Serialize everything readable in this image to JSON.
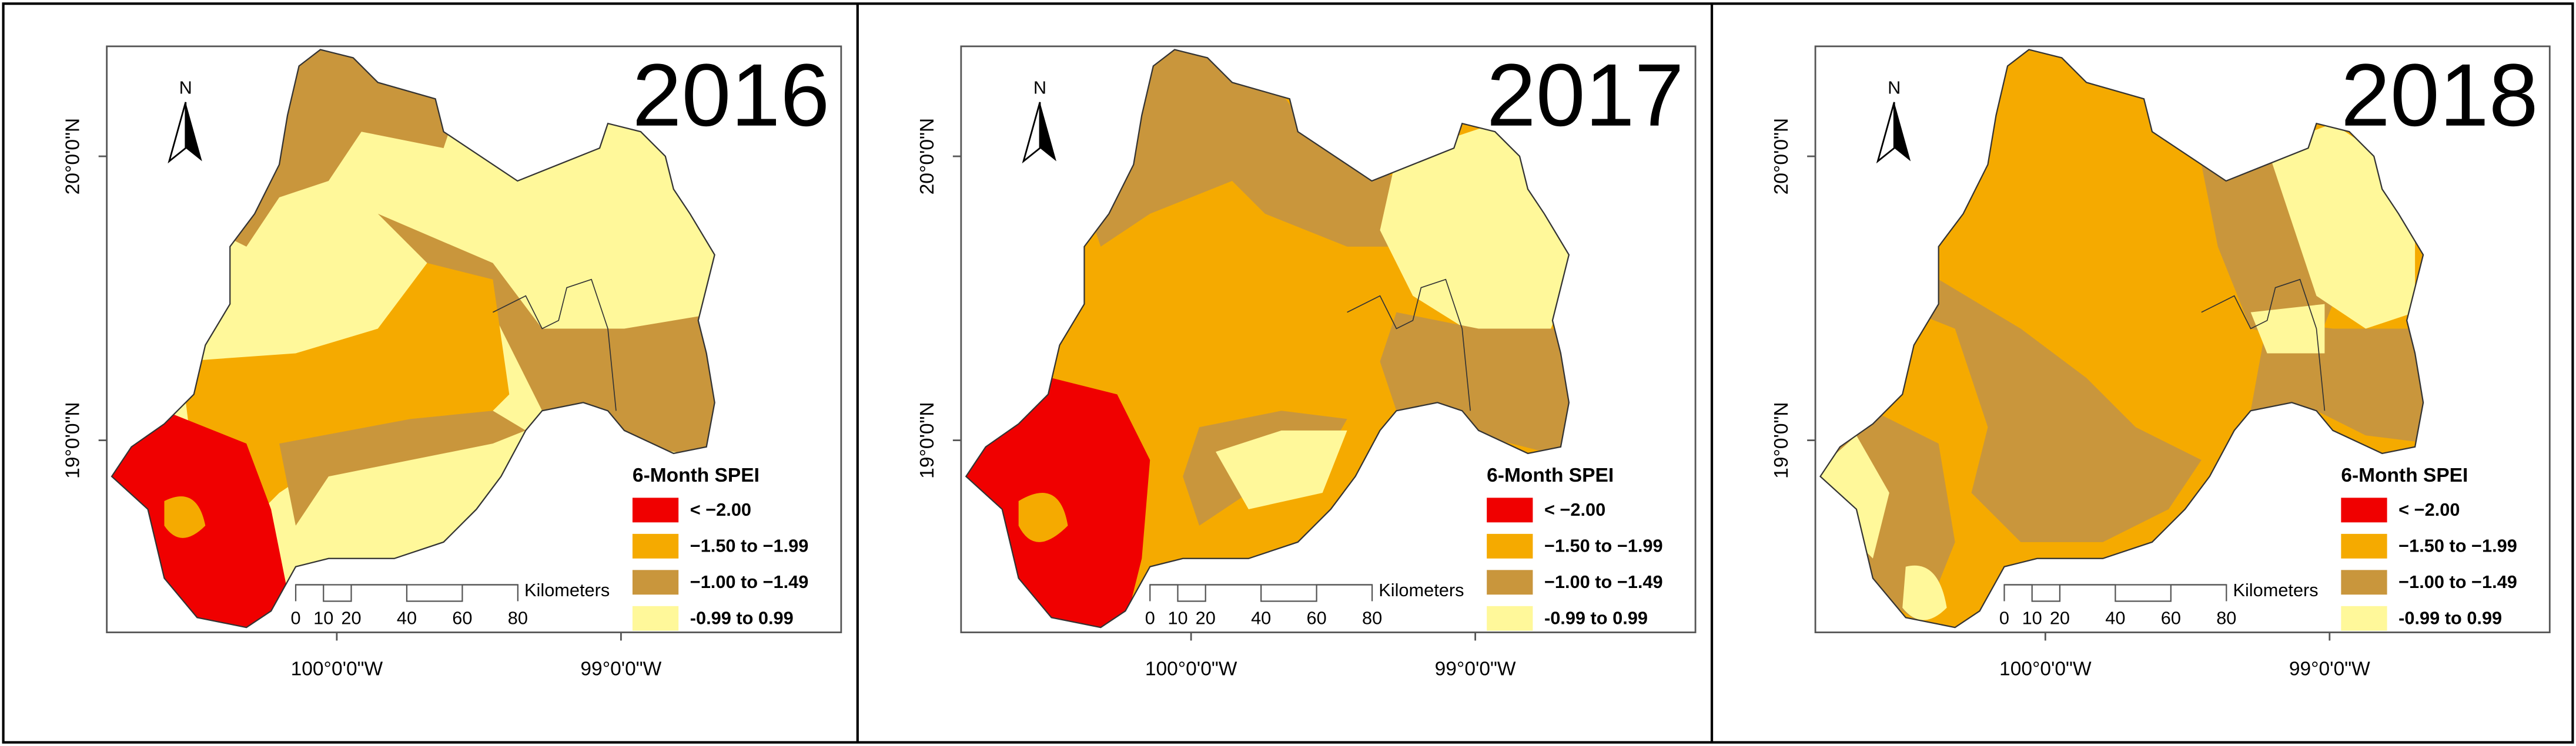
{
  "panels": [
    {
      "year": "2016",
      "north_label": "N",
      "latitude_labels": [
        "20°0'0\"N",
        "19°0'0\"N"
      ],
      "longitude_labels": [
        "100°0'0\"W",
        "99°0'0\"W"
      ],
      "legend": {
        "title": "6-Month SPEI",
        "items": [
          {
            "label": "< −2.00",
            "color": "#f00000"
          },
          {
            "label": "−1.50 to −1.99",
            "color": "#f5aa00"
          },
          {
            "label": "−1.00 to −1.49",
            "color": "#c9963c"
          },
          {
            "label": "‑0.99 to 0.99",
            "color": "#fff89a"
          }
        ]
      },
      "scale_bar": {
        "labels": [
          0,
          10,
          20,
          40,
          60,
          80
        ],
        "unit": "Kilometers"
      }
    },
    {
      "year": "2017",
      "north_label": "N",
      "latitude_labels": [
        "20°0'0\"N",
        "19°0'0\"N"
      ],
      "longitude_labels": [
        "100°0'0\"W",
        "99°0'0\"W"
      ],
      "legend": {
        "title": "6-Month SPEI",
        "items": [
          {
            "label": "< −2.00",
            "color": "#f00000"
          },
          {
            "label": "−1.50 to −1.99",
            "color": "#f5aa00"
          },
          {
            "label": "−1.00 to −1.49",
            "color": "#c9963c"
          },
          {
            "label": "‑0.99 to 0.99",
            "color": "#fff89a"
          }
        ]
      },
      "scale_bar": {
        "labels": [
          0,
          10,
          20,
          40,
          60,
          80
        ],
        "unit": "Kilometers"
      }
    },
    {
      "year": "2018",
      "north_label": "N",
      "latitude_labels": [
        "20°0'0\"N",
        "19°0'0\"N"
      ],
      "longitude_labels": [
        "100°0'0\"W",
        "99°0'0\"W"
      ],
      "legend": {
        "title": "6-Month SPEI",
        "items": [
          {
            "label": "< −2.00",
            "color": "#f00000"
          },
          {
            "label": "−1.50 to −1.99",
            "color": "#f5aa00"
          },
          {
            "label": "−1.00 to −1.49",
            "color": "#c9963c"
          },
          {
            "label": "‑0.99 to 0.99",
            "color": "#fff89a"
          }
        ]
      },
      "scale_bar": {
        "labels": [
          0,
          10,
          20,
          40,
          60,
          80
        ],
        "unit": "Kilometers"
      }
    }
  ]
}
